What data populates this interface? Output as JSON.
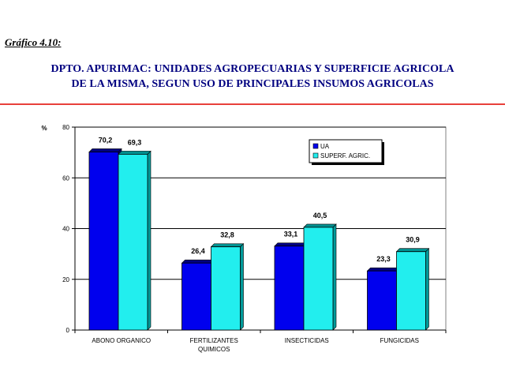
{
  "caption": "Gráfico 4.10:",
  "title_line1": "DPTO. APURIMAC: UNIDADES AGROPECUARIAS Y SUPERFICIE AGRICOLA",
  "title_line2": "DE LA MISMA, SEGUN USO DE PRINCIPALES INSUMOS AGRICOLAS",
  "colors": {
    "title": "#000080",
    "rule": "#e8403a",
    "ua_front": "#0000ee",
    "ua_top": "#000080",
    "ua_side": "#00007a",
    "sup_front": "#22eeee",
    "sup_top": "#009090",
    "sup_side": "#009a9a"
  },
  "chart_data": {
    "type": "bar",
    "ylabel": "%",
    "ylim": [
      0,
      80
    ],
    "yticks": [
      0,
      20,
      40,
      60,
      80
    ],
    "grid": true,
    "legend_position": "top-right",
    "categories": [
      [
        "ABONO ORGANICO"
      ],
      [
        "FERTILIZANTES",
        "QUIMICOS"
      ],
      [
        "INSECTICIDAS"
      ],
      [
        "FUNGICIDAS"
      ]
    ],
    "series": [
      {
        "name": "UA",
        "values": [
          70.2,
          26.4,
          33.1,
          23.3
        ],
        "labels": [
          "70,2",
          "26,4",
          "33,1",
          "23,3"
        ]
      },
      {
        "name": "SUPERF. AGRIC.",
        "values": [
          69.3,
          32.8,
          40.5,
          30.9
        ],
        "labels": [
          "69,3",
          "32,8",
          "40,5",
          "30,9"
        ]
      }
    ]
  }
}
